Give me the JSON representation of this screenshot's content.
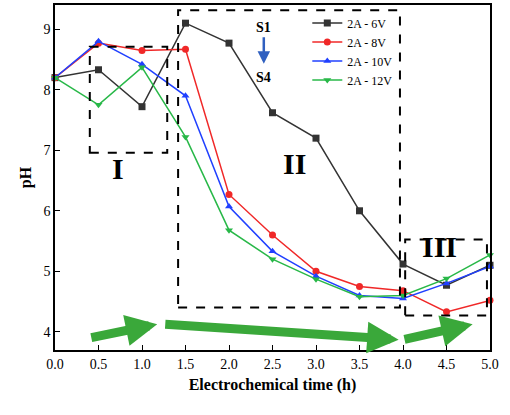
{
  "chart_data": {
    "type": "line",
    "x_label": "Electrochemical time (h)",
    "y_label": "pH",
    "x": [
      0,
      0.5,
      1.0,
      1.5,
      2.0,
      2.5,
      3.0,
      3.5,
      4.0,
      4.5,
      5.0
    ],
    "series": [
      {
        "name": "2A - 6V",
        "color": "#333333",
        "marker": "square",
        "values": [
          8.2,
          8.33,
          7.72,
          9.1,
          8.77,
          7.62,
          7.2,
          6.0,
          5.12,
          4.77,
          5.1
        ]
      },
      {
        "name": "2A - 8V",
        "color": "#f02828",
        "marker": "circle",
        "values": [
          8.2,
          8.77,
          8.65,
          8.67,
          6.27,
          5.6,
          5.0,
          4.75,
          4.68,
          4.33,
          4.52
        ]
      },
      {
        "name": "2A - 10V",
        "color": "#2040ff",
        "marker": "triangle-up",
        "values": [
          8.2,
          8.8,
          8.42,
          7.9,
          6.07,
          5.33,
          4.92,
          4.6,
          4.55,
          4.8,
          5.08
        ]
      },
      {
        "name": "2A - 12V",
        "color": "#28b848",
        "marker": "triangle-down",
        "values": [
          8.2,
          7.75,
          8.37,
          7.22,
          5.68,
          5.2,
          4.87,
          4.58,
          4.6,
          4.88,
          5.27
        ]
      }
    ],
    "xlim": [
      0,
      5
    ],
    "xticks": [
      {
        "value": 0,
        "label": "0.0"
      },
      0.5,
      {
        "value": 1,
        "label": "1.0"
      },
      1.5,
      {
        "value": 2,
        "label": "2.0"
      },
      2.5,
      {
        "value": 3,
        "label": "3.0"
      },
      3.5,
      {
        "value": 4,
        "label": "4.0"
      },
      4.5,
      {
        "value": 5,
        "label": "5.0"
      }
    ],
    "ylim": [
      3.7,
      9.4
    ],
    "yticks": [
      4,
      5,
      6,
      7,
      8,
      9
    ],
    "grid": false,
    "legend": "top",
    "annotations": [
      {
        "text": "I"
      },
      {
        "text": "II"
      },
      {
        "text": "III"
      },
      {
        "text": "S1"
      },
      {
        "text": "S4"
      }
    ]
  }
}
